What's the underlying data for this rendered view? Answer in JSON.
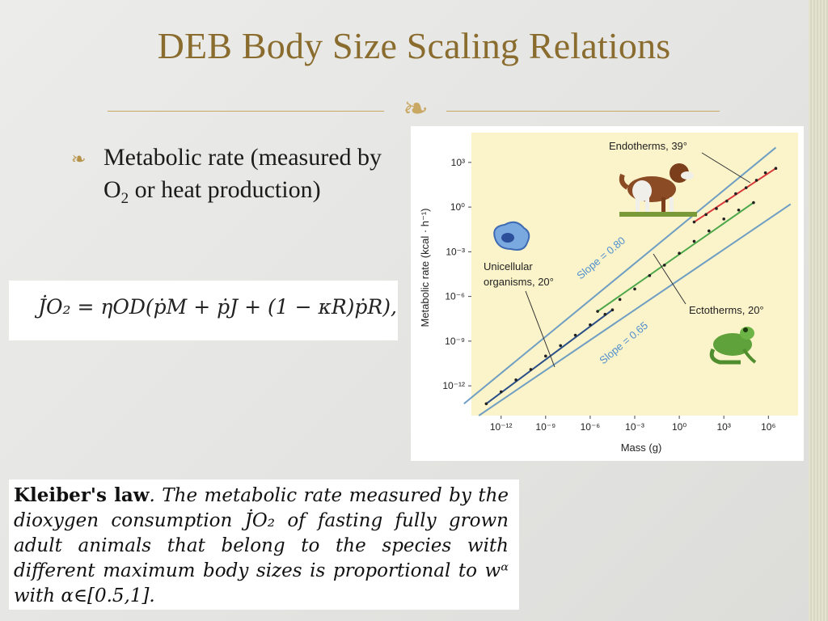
{
  "slide": {
    "title": "DEB Body Size Scaling Relations",
    "bullet": "Metabolic rate (measured by O",
    "bullet_sub": "2",
    "bullet_tail": " or heat production)",
    "equation": "J̇O₂ = ηOD(ṗM + ṗJ + (1 − κR)ṗR),"
  },
  "kleiber": {
    "bold": "Kleiber's law",
    "text": ". The metabolic rate measured by the dioxygen consumption J̇O₂ of fasting fully grown adult animals that belong to the species with different maximum body sizes is proportional to wᵅ with α∈[0.5,1]."
  },
  "chart_data": {
    "type": "scatter",
    "xlabel": "Mass (g)",
    "ylabel": "Metabolic rate (kcal · h⁻¹)",
    "x_ticks": [
      "10⁻¹²",
      "10⁻⁹",
      "10⁻⁶",
      "10⁻³",
      "10⁰",
      "10³",
      "10⁶"
    ],
    "y_ticks": [
      "10³",
      "10⁰",
      "10⁻³",
      "10⁻⁶",
      "10⁻⁹",
      "10⁻¹²"
    ],
    "xlim_log10": [
      -14,
      8
    ],
    "ylim_log10": [
      -14,
      5
    ],
    "annotations": {
      "endotherms": "Endotherms, 39°",
      "ectotherms": "Ectotherms, 20°",
      "unicellular_1": "Unicellular",
      "unicellular_2": "organisms, 20°",
      "slope_high": "Slope = 0.80",
      "slope_low": "Slope = 0.65"
    },
    "series": [
      {
        "name": "Endotherms, 39°",
        "color": "#d9393b",
        "x_log10": [
          1.0,
          1.8,
          2.5,
          3.2,
          3.8,
          4.5,
          5.2,
          5.8,
          6.5
        ],
        "y_log10": [
          -1.0,
          -0.5,
          -0.1,
          0.4,
          0.9,
          1.3,
          1.8,
          2.3,
          2.6
        ]
      },
      {
        "name": "Ectotherms, 20°",
        "color": "#4da84a",
        "x_log10": [
          -5.5,
          -4,
          -3,
          -2,
          -1,
          0,
          1,
          2,
          3,
          4,
          5
        ],
        "y_log10": [
          -7.0,
          -6.2,
          -5.5,
          -4.6,
          -3.9,
          -3.1,
          -2.3,
          -1.6,
          -0.8,
          -0.2,
          0.3
        ]
      },
      {
        "name": "Unicellular organisms, 20°",
        "color": "#2a4f88",
        "x_log10": [
          -13,
          -12,
          -11,
          -10,
          -9,
          -8,
          -7,
          -6,
          -5,
          -4.5
        ],
        "y_log10": [
          -13.2,
          -12.4,
          -11.6,
          -10.9,
          -10.0,
          -9.3,
          -8.6,
          -7.9,
          -7.2,
          -6.9
        ]
      }
    ],
    "guide_lines": [
      {
        "label": "Slope = 0.80",
        "color": "#6f9ec3"
      },
      {
        "label": "Slope = 0.65",
        "color": "#6f9ec3"
      }
    ]
  }
}
